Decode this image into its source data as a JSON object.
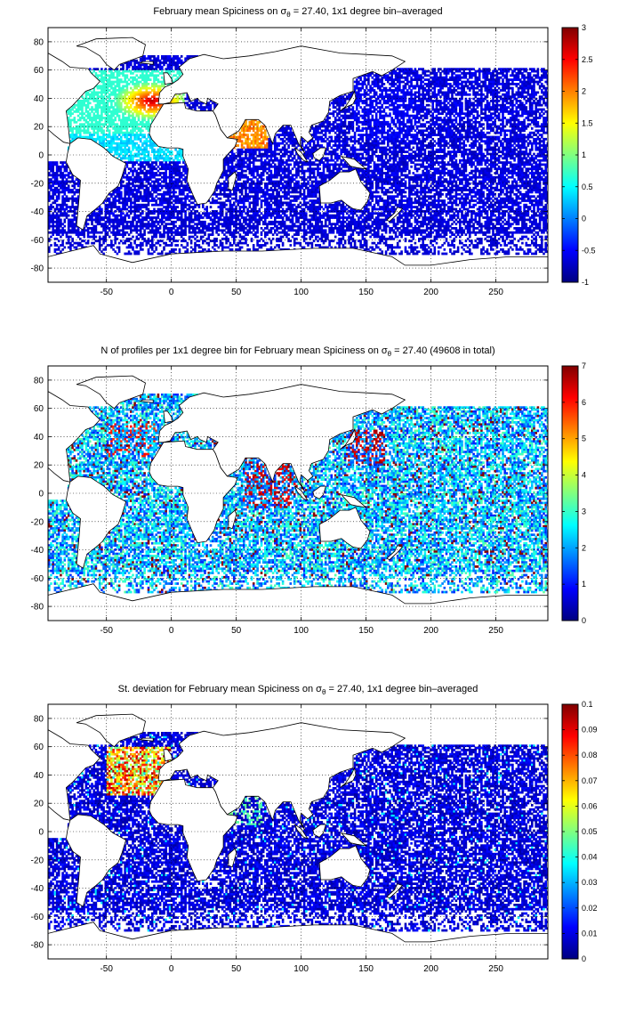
{
  "chart_data": [
    {
      "type": "heatmap",
      "title": {
        "prefix": "February mean Spiciness on ",
        "sigma": "σ",
        "sub": "θ",
        "suffix": " = 27.40, 1x1 degree bin–averaged"
      },
      "xlim": [
        -95,
        290
      ],
      "ylim": [
        -90,
        90
      ],
      "xticks": [
        -50,
        0,
        50,
        100,
        150,
        200,
        250
      ],
      "yticks": [
        -80,
        -60,
        -40,
        -20,
        0,
        20,
        40,
        60,
        80
      ],
      "grid": true,
      "colorbar": {
        "range": [
          -1,
          3
        ],
        "ticks": [
          -1,
          -0.5,
          0,
          0.5,
          1,
          1.5,
          2,
          2.5,
          3
        ],
        "colormap": "jet",
        "placement": "right"
      }
    },
    {
      "type": "heatmap",
      "title": {
        "prefix": "N of profiles per 1x1 degree bin for February mean Spiciness on ",
        "sigma": "σ",
        "sub": "θ",
        "suffix": " = 27.40 (49608 in total)"
      },
      "xlim": [
        -95,
        290
      ],
      "ylim": [
        -90,
        90
      ],
      "xticks": [
        -50,
        0,
        50,
        100,
        150,
        200,
        250
      ],
      "yticks": [
        -80,
        -60,
        -40,
        -20,
        0,
        20,
        40,
        60,
        80
      ],
      "grid": true,
      "colorbar": {
        "range": [
          0,
          7
        ],
        "ticks": [
          0,
          1,
          2,
          3,
          4,
          5,
          6,
          7
        ],
        "colormap": "jet",
        "placement": "right"
      }
    },
    {
      "type": "heatmap",
      "title": {
        "prefix": "St. deviation for February mean Spiciness on ",
        "sigma": "σ",
        "sub": "θ",
        "suffix": " = 27.40, 1x1 degree bin–averaged"
      },
      "xlim": [
        -95,
        290
      ],
      "ylim": [
        -90,
        90
      ],
      "xticks": [
        -50,
        0,
        50,
        100,
        150,
        200,
        250
      ],
      "yticks": [
        -80,
        -60,
        -40,
        -20,
        0,
        20,
        40,
        60,
        80
      ],
      "grid": true,
      "colorbar": {
        "range": [
          0,
          0.1
        ],
        "ticks": [
          0,
          0.01,
          0.02,
          0.03,
          0.04,
          0.05,
          0.06,
          0.07,
          0.08,
          0.09,
          0.1
        ],
        "colormap": "jet",
        "placement": "right"
      }
    }
  ],
  "colors": {
    "land": "#ffffff",
    "coastline": "#000000",
    "jet_low": "#00008f",
    "jet_high": "#800000"
  }
}
